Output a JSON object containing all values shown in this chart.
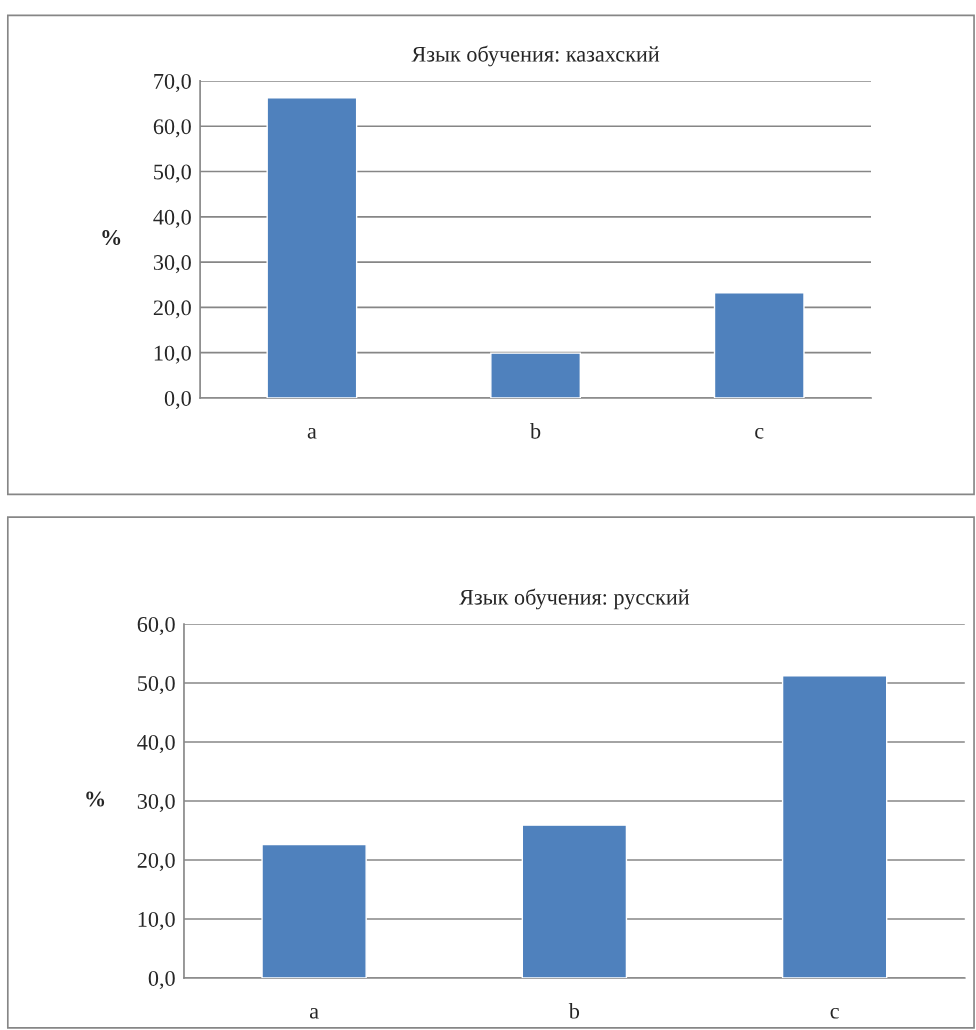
{
  "chart_data": [
    {
      "type": "bar",
      "title": "Язык обучения: казахский",
      "ylabel": "%",
      "categories": [
        "a",
        "b",
        "c"
      ],
      "values": [
        66.3,
        9.9,
        23.2
      ],
      "color": "#4f81bd",
      "ylim": [
        0,
        70
      ],
      "yticks": [
        {
          "value": 0,
          "label": "0,0"
        },
        {
          "value": 10,
          "label": "10,0"
        },
        {
          "value": 20,
          "label": "20,0"
        },
        {
          "value": 30,
          "label": "30,0"
        },
        {
          "value": 40,
          "label": "40,0"
        },
        {
          "value": 50,
          "label": "50,0"
        },
        {
          "value": 60,
          "label": "60,0"
        },
        {
          "value": 70,
          "label": "70,0"
        }
      ],
      "grid": "y",
      "legend": false
    },
    {
      "type": "bar",
      "title": "Язык обучения: русский",
      "ylabel": "%",
      "categories": [
        "a",
        "b",
        "c"
      ],
      "values": [
        22.6,
        25.9,
        51.2
      ],
      "color": "#4f81bd",
      "ylim": [
        0,
        60
      ],
      "yticks": [
        {
          "value": 0,
          "label": "0,0"
        },
        {
          "value": 10,
          "label": "10,0"
        },
        {
          "value": 20,
          "label": "20,0"
        },
        {
          "value": 30,
          "label": "30,0"
        },
        {
          "value": 40,
          "label": "40,0"
        },
        {
          "value": 50,
          "label": "50,0"
        },
        {
          "value": 60,
          "label": "60,0"
        }
      ],
      "grid": "y",
      "legend": false
    }
  ]
}
